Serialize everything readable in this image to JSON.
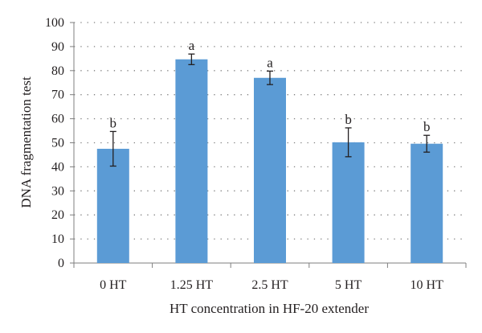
{
  "chart_data": {
    "type": "bar",
    "categories": [
      "0 HT",
      "1.25 HT",
      "2.5 HT",
      "5 HT",
      "10 HT"
    ],
    "values": [
      47.5,
      84.7,
      77.0,
      50.2,
      49.6
    ],
    "error": [
      7.2,
      2.2,
      2.8,
      6.0,
      3.5
    ],
    "significance": [
      "b",
      "a",
      "a",
      "b",
      "b"
    ],
    "xlabel": "HT concentration in HF-20 extender",
    "ylabel": "DNA fragmentation test",
    "ylim": [
      0,
      100
    ],
    "yticks": [
      0,
      10,
      20,
      30,
      40,
      50,
      60,
      70,
      80,
      90,
      100
    ],
    "grid": true,
    "bar_color": "#5b9bd5"
  }
}
